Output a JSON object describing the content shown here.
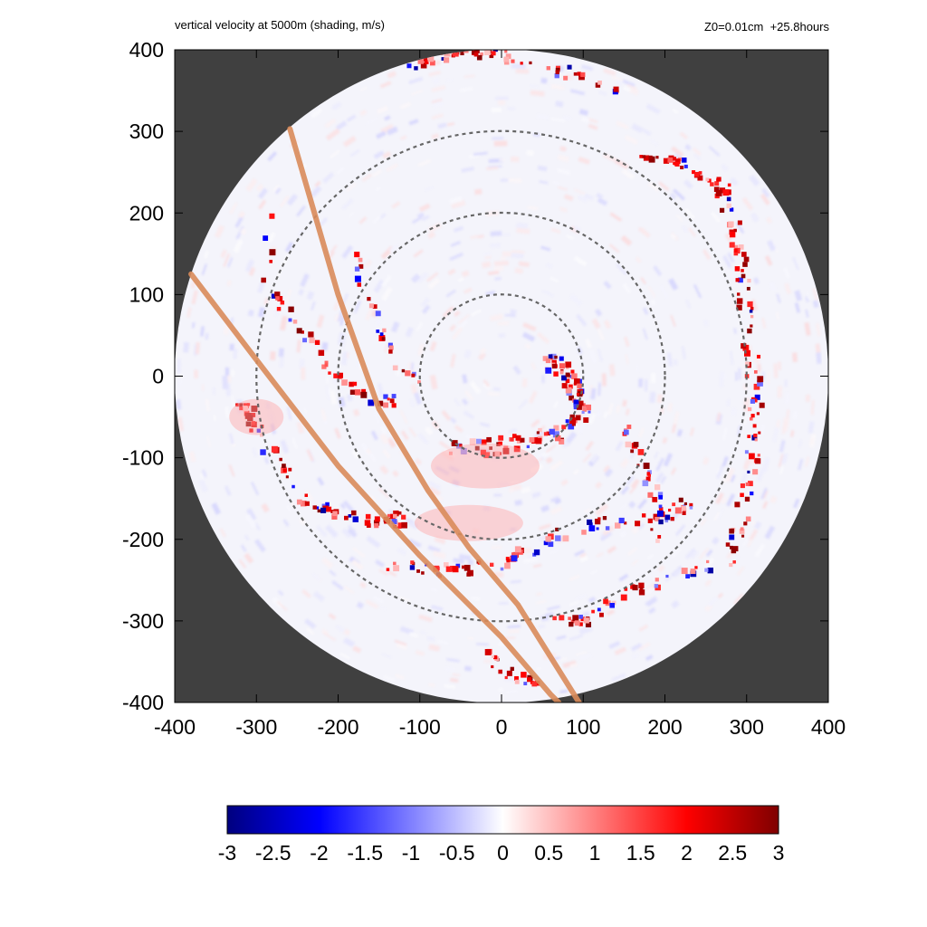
{
  "chart_data": {
    "type": "heatmap",
    "title": "vertical velocity at 5000m (shading, m/s)",
    "subtitle": "Z0=0.01cm  +25.8hours",
    "xlim": [
      -400,
      400
    ],
    "ylim": [
      -400,
      400
    ],
    "x_ticks": [
      "-400",
      "-300",
      "-200",
      "-100",
      "0",
      "100",
      "200",
      "300",
      "400"
    ],
    "y_ticks": [
      "400",
      "300",
      "200",
      "100",
      "0",
      "-100",
      "-200",
      "-300",
      "-400"
    ],
    "domain_radius": 400,
    "reference_circle_radii": [
      100,
      200,
      300
    ],
    "track_lines": [
      [
        [
          -259,
          303
        ],
        [
          -200,
          100
        ],
        [
          -150,
          -40
        ],
        [
          -90,
          -140
        ],
        [
          -40,
          -210
        ],
        [
          20,
          -280
        ],
        [
          95,
          -400
        ]
      ],
      [
        [
          -380,
          125
        ],
        [
          -300,
          20
        ],
        [
          -200,
          -110
        ],
        [
          -100,
          -220
        ],
        [
          0,
          -320
        ],
        [
          60,
          -390
        ],
        [
          70,
          -400
        ]
      ]
    ],
    "colorbar": {
      "min": -3,
      "max": 3,
      "tick_labels": [
        "-3",
        "-2.5",
        "-2",
        "-1.5",
        "-1",
        "-0.5",
        "0",
        "0.5",
        "1",
        "1.5",
        "2",
        "2.5",
        "3"
      ]
    },
    "colors": {
      "outside_domain": "#404040",
      "track_line": "#d98b5a",
      "reference_circle": "#666666",
      "negative_max": "#00007f",
      "negative_mid": "#0000ff",
      "zero": "#ffffff",
      "positive_mid": "#ff0000",
      "positive_max": "#7f0000"
    }
  }
}
